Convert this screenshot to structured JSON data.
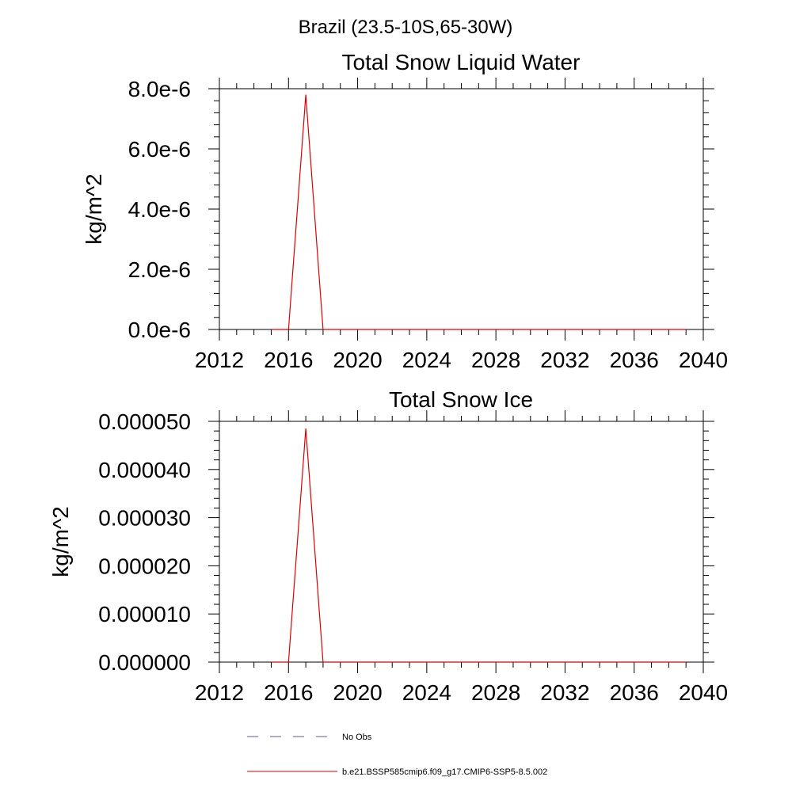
{
  "figure": {
    "supertitle": "Brazil (23.5-10S,65-30W)"
  },
  "chart_data": [
    {
      "type": "line",
      "title": "Total Snow Liquid Water",
      "xlabel": "",
      "ylabel": "kg/m^2",
      "xlim": [
        2012,
        2040
      ],
      "ylim": [
        0,
        8e-06
      ],
      "xticks": [
        2012,
        2016,
        2020,
        2024,
        2028,
        2032,
        2036,
        2040
      ],
      "xtick_labels": [
        "2012",
        "2016",
        "2020",
        "2024",
        "2028",
        "2032",
        "2036",
        "2040"
      ],
      "yticks": [
        0,
        2e-06,
        4e-06,
        6e-06,
        8e-06
      ],
      "ytick_labels": [
        "0.0e-6",
        "2.0e-6",
        "4.0e-6",
        "6.0e-6",
        "8.0e-6"
      ],
      "series": [
        {
          "name": "b.e21.BSSP585cmip6.f09_g17.CMIP6-SSP5-8.5.002",
          "color": "#dd0000",
          "x": [
            2015,
            2016,
            2017,
            2018,
            2019,
            2020,
            2021,
            2022,
            2023,
            2024,
            2025,
            2026,
            2027,
            2028,
            2029,
            2030,
            2031,
            2032,
            2033,
            2034,
            2035,
            2036,
            2037,
            2038,
            2039
          ],
          "y": [
            0,
            0,
            7.8e-06,
            0,
            0,
            0,
            0,
            0,
            0,
            0,
            0,
            0,
            0,
            0,
            0,
            0,
            0,
            0,
            0,
            0,
            0,
            0,
            0,
            0,
            0
          ]
        }
      ]
    },
    {
      "type": "line",
      "title": "Total Snow Ice",
      "xlabel": "",
      "ylabel": "kg/m^2",
      "xlim": [
        2012,
        2040
      ],
      "ylim": [
        0,
        5e-05
      ],
      "xticks": [
        2012,
        2016,
        2020,
        2024,
        2028,
        2032,
        2036,
        2040
      ],
      "xtick_labels": [
        "2012",
        "2016",
        "2020",
        "2024",
        "2028",
        "2032",
        "2036",
        "2040"
      ],
      "yticks": [
        0,
        1e-05,
        2e-05,
        3e-05,
        4e-05,
        5e-05
      ],
      "ytick_labels": [
        "0.000000",
        "0.000010",
        "0.000020",
        "0.000030",
        "0.000040",
        "0.000050"
      ],
      "series": [
        {
          "name": "b.e21.BSSP585cmip6.f09_g17.CMIP6-SSP5-8.5.002",
          "color": "#dd0000",
          "x": [
            2015,
            2016,
            2017,
            2018,
            2019,
            2020,
            2021,
            2022,
            2023,
            2024,
            2025,
            2026,
            2027,
            2028,
            2029,
            2030,
            2031,
            2032,
            2033,
            2034,
            2035,
            2036,
            2037,
            2038,
            2039
          ],
          "y": [
            0,
            0,
            4.85e-05,
            0,
            0,
            0,
            0,
            0,
            0,
            0,
            0,
            0,
            0,
            0,
            0,
            0,
            0,
            0,
            0,
            0,
            0,
            0,
            0,
            0,
            0
          ]
        }
      ]
    }
  ],
  "legend": {
    "placement": "bottom",
    "items": [
      {
        "label": "No Obs",
        "color": "#5a5a8a",
        "style": "dashed"
      },
      {
        "label": "b.e21.BSSP585cmip6.f09_g17.CMIP6-SSP5-8.5.002",
        "color": "#dd0000",
        "style": "solid"
      }
    ]
  }
}
